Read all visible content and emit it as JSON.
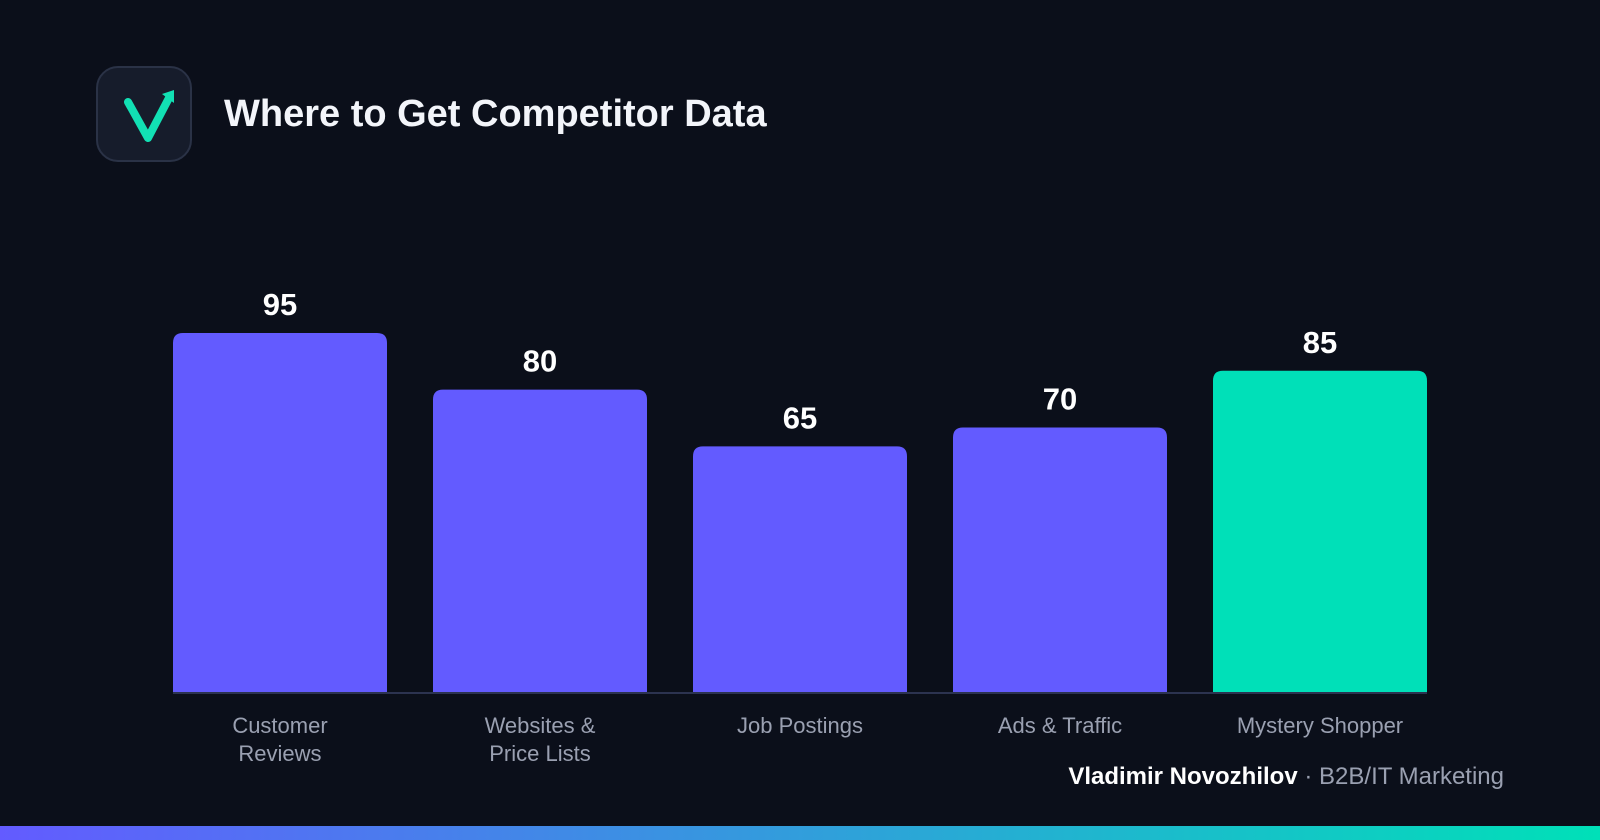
{
  "title": "Where to Get Competitor Data",
  "logo": {
    "icon": "checkmark-arrow-icon",
    "color": "#12e0b4"
  },
  "credit": {
    "name": "Vladimir Novozhilov",
    "separator": "·",
    "role": "B2B/IT Marketing"
  },
  "colors": {
    "bar_default": "#635bff",
    "bar_highlight": "#00e0b8",
    "gradient_start": "#635bff",
    "gradient_end": "#00e0b8"
  },
  "chart_data": {
    "type": "bar",
    "categories": [
      [
        "Customer",
        "Reviews"
      ],
      [
        "Websites &",
        "Price Lists"
      ],
      [
        "Job Postings"
      ],
      [
        "Ads & Traffic"
      ],
      [
        "Mystery Shopper"
      ]
    ],
    "values": [
      95,
      80,
      65,
      70,
      85
    ],
    "data_labels": [
      "95",
      "80",
      "65",
      "70",
      "85"
    ],
    "highlight_index": 4,
    "ylim": [
      0,
      100
    ],
    "grid": false,
    "legend": "none"
  }
}
